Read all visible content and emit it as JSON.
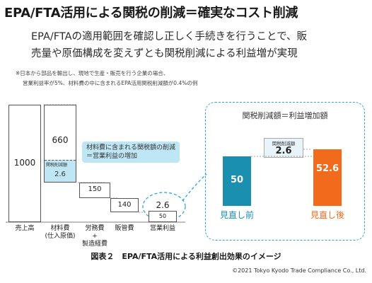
{
  "title": "EPA/FTA活用による関税の削減＝確実なコスト削減",
  "lead": {
    "line1": "EPA/FTAの適用範囲を確認し正しく手続きを行うことで、販",
    "line2": "売量や原価構成を変えずとも関税削減による利益増が実現"
  },
  "notes": {
    "line1": "※日本から部品を輸出し、現地で生産・販売を行う企業の場合、",
    "line2": "営業利益率が5%、材料費の中に含まれるEPA活用関税削減額が0.4%の例"
  },
  "waterfall": {
    "sales": {
      "label": "売上高",
      "value": "1000"
    },
    "materials": {
      "label1": "材料費",
      "label2": "(仕入原価)",
      "value": "660",
      "duty_tag": "関税削減額",
      "duty_value": "2.6"
    },
    "labor": {
      "label1": "労務費",
      "label2": "+",
      "label3": "製造経費",
      "value": "150"
    },
    "sga": {
      "label": "販管費",
      "value": "140"
    },
    "profit": {
      "label": "営業利益",
      "value_top": "2.6",
      "value_bottom": "50"
    }
  },
  "callout": {
    "line1": "材料費に含まれる関税額の削減",
    "line2": "＝営業利益の増加"
  },
  "compare": {
    "header": "関税削減額＝利益増加額",
    "diff_tag": "関税削減額",
    "diff_value": "2.6",
    "before": {
      "value": "50",
      "label": "見直し前"
    },
    "after": {
      "value": "52.6",
      "label": "見直し後"
    }
  },
  "colors": {
    "teal": "#1a8fb0",
    "orange": "#f26b1d",
    "light_blue": "#bfe6f5",
    "dashed_blue": "#2aa7d8"
  },
  "caption": "図表２　EPA/FTA活用による利益創出効果のイメージ",
  "copyright": "©2021 Tokyo Kyodo Trade Compliance Co., Ltd."
}
